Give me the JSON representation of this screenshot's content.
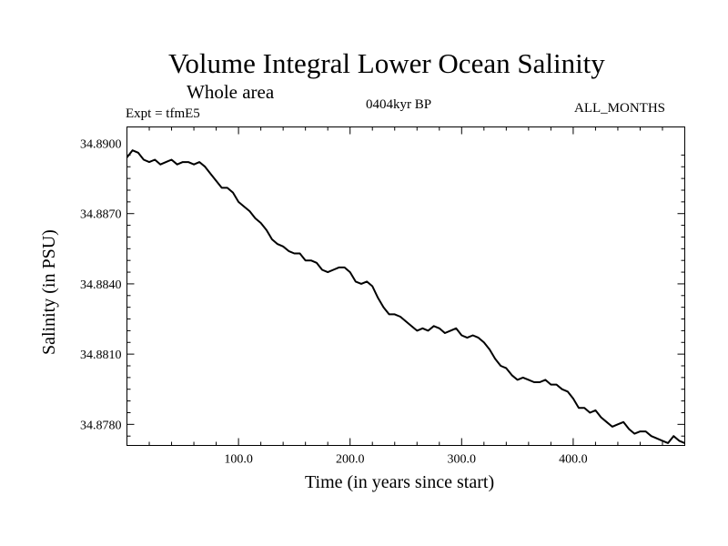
{
  "header": {
    "title": "Volume Integral Lower Ocean Salinity",
    "subtitle": "Whole area",
    "experiment": "Expt = tfmE5",
    "period": "0404kyr BP",
    "months": "ALL_MONTHS"
  },
  "chart_data": {
    "type": "line",
    "title": "Volume Integral Lower Ocean Salinity",
    "subtitle": "Whole area",
    "xlabel": "Time (in years since start)",
    "ylabel": "Salinity (in PSU)",
    "xlim": [
      0,
      500
    ],
    "ylim": [
      34.8771,
      34.8907
    ],
    "xticks": [
      100,
      200,
      300,
      400
    ],
    "xtick_labels": [
      "100.0",
      "200.0",
      "300.0",
      "400.0"
    ],
    "yticks": [
      34.878,
      34.881,
      34.884,
      34.887,
      34.89
    ],
    "ytick_labels": [
      "34.8780",
      "34.8810",
      "34.8840",
      "34.8870",
      "34.8900"
    ],
    "grid": false,
    "series": [
      {
        "values_x": [
          0,
          5,
          10,
          15,
          20,
          25,
          30,
          35,
          40,
          45,
          50,
          55,
          60,
          65,
          70,
          75,
          80,
          85,
          90,
          95,
          100,
          105,
          110,
          115,
          120,
          125,
          130,
          135,
          140,
          145,
          150,
          155,
          160,
          165,
          170,
          175,
          180,
          185,
          190,
          195,
          200,
          205,
          210,
          215,
          220,
          225,
          230,
          235,
          240,
          245,
          250,
          255,
          260,
          265,
          270,
          275,
          280,
          285,
          290,
          295,
          300,
          305,
          310,
          315,
          320,
          325,
          330,
          335,
          340,
          345,
          350,
          355,
          360,
          365,
          370,
          375,
          380,
          385,
          390,
          395,
          400,
          405,
          410,
          415,
          420,
          425,
          430,
          435,
          440,
          445,
          450,
          455,
          460,
          465,
          470,
          475,
          480,
          485,
          490,
          495,
          500
        ],
        "values_y": [
          34.8894,
          34.8897,
          34.8896,
          34.8893,
          34.8892,
          34.8893,
          34.8891,
          34.8892,
          34.8893,
          34.8891,
          34.8892,
          34.8892,
          34.8891,
          34.8892,
          34.889,
          34.8887,
          34.8884,
          34.8881,
          34.8881,
          34.8879,
          34.8875,
          34.8873,
          34.8871,
          34.8868,
          34.8866,
          34.8863,
          34.8859,
          34.8857,
          34.8856,
          34.8854,
          34.8853,
          34.8853,
          34.885,
          34.885,
          34.8849,
          34.8846,
          34.8845,
          34.8846,
          34.8847,
          34.8847,
          34.8845,
          34.8841,
          34.884,
          34.8841,
          34.8839,
          34.8834,
          34.883,
          34.8827,
          34.8827,
          34.8826,
          34.8824,
          34.8822,
          34.882,
          34.8821,
          34.882,
          34.8822,
          34.8821,
          34.8819,
          34.882,
          34.8821,
          34.8818,
          34.8817,
          34.8818,
          34.8817,
          34.8815,
          34.8812,
          34.8808,
          34.8805,
          34.8804,
          34.8801,
          34.8799,
          34.88,
          34.8799,
          34.8798,
          34.8798,
          34.8799,
          34.8797,
          34.8797,
          34.8795,
          34.8794,
          34.8791,
          34.8787,
          34.8787,
          34.8785,
          34.8786,
          34.8783,
          34.8781,
          34.8779,
          34.878,
          34.8781,
          34.8778,
          34.8776,
          34.8777,
          34.8777,
          34.8775,
          34.8774,
          34.8773,
          34.8772,
          34.8775,
          34.8773,
          34.8772
        ]
      }
    ]
  }
}
